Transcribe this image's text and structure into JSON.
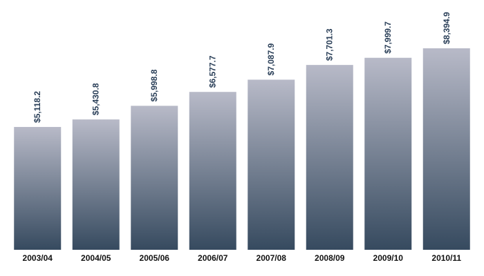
{
  "chart_data": {
    "type": "bar",
    "categories": [
      "2003/04",
      "2004/05",
      "2005/06",
      "2006/07",
      "2007/08",
      "2008/09",
      "2009/10",
      "2010/11"
    ],
    "values": [
      5118.2,
      5430.8,
      5998.8,
      6577.7,
      7087.9,
      7701.3,
      7999.7,
      8394.9
    ],
    "value_labels": [
      "$5,118.2",
      "$5,430.8",
      "$5,998.8",
      "$6,577.7",
      "$7,087.9",
      "$7,701.3",
      "$7,999.7",
      "$8,394.9"
    ],
    "gradient": [
      "#b8bac8",
      "#364a5f"
    ]
  }
}
